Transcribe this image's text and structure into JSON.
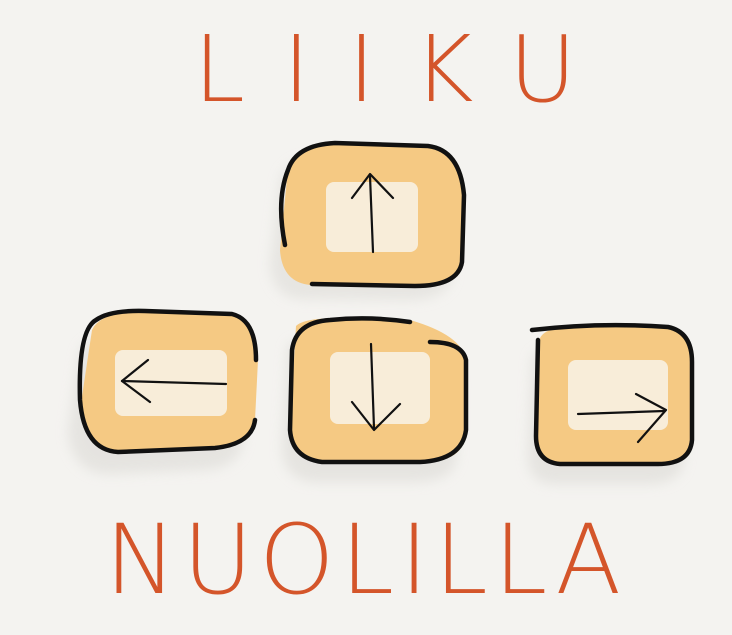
{
  "title_top": "LIIKU",
  "title_bottom": "NUOLILLA",
  "keys": [
    {
      "name": "up",
      "icon": "arrow-up-icon"
    },
    {
      "name": "left",
      "icon": "arrow-left-icon"
    },
    {
      "name": "down",
      "icon": "arrow-down-icon"
    },
    {
      "name": "right",
      "icon": "arrow-right-icon"
    }
  ],
  "colors": {
    "background": "#f4f3f0",
    "text": "#d4552a",
    "key_fill": "#f5c983",
    "key_face": "#f8f1e2",
    "outline": "#111111"
  }
}
